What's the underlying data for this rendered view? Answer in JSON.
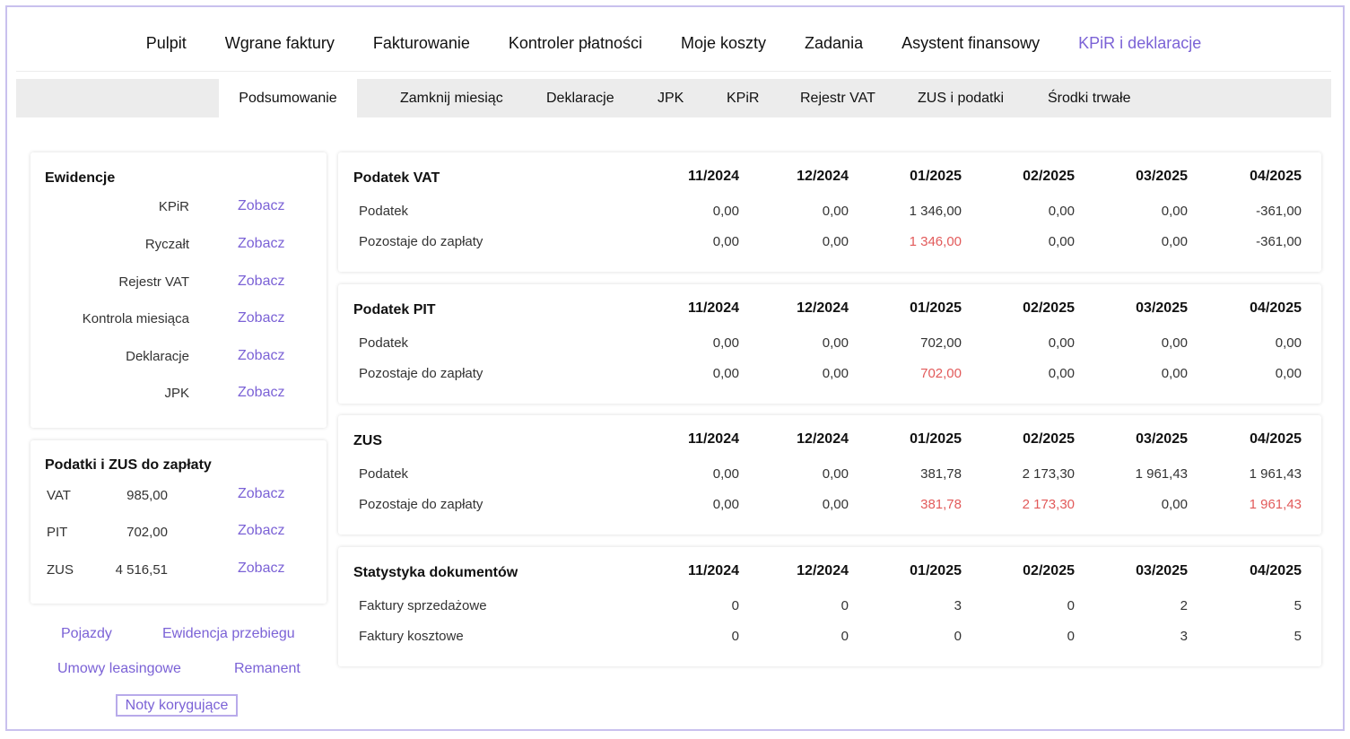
{
  "topnav": [
    "Pulpit",
    "Wgrane faktury",
    "Fakturowanie",
    "Kontroler płatności",
    "Moje koszty",
    "Zadania",
    "Asystent finansowy",
    "KPiR i deklaracje"
  ],
  "subnav": [
    "Podsumowanie",
    "Zamknij miesiąc",
    "Deklaracje",
    "JPK",
    "KPiR",
    "Rejestr VAT",
    "ZUS i podatki",
    "Środki trwałe"
  ],
  "ewidencje": {
    "title": "Ewidencje",
    "link_label": "Zobacz",
    "items": [
      "KPiR",
      "Ryczałt",
      "Rejestr VAT",
      "Kontrola miesiąca",
      "Deklaracje",
      "JPK"
    ]
  },
  "podatki": {
    "title": "Podatki i ZUS do zapłaty",
    "link_label": "Zobacz",
    "items": [
      {
        "label": "VAT",
        "value": "985,00"
      },
      {
        "label": "PIT",
        "value": "702,00"
      },
      {
        "label": "ZUS",
        "value": "4 516,51"
      }
    ]
  },
  "bottom_links": {
    "pojazdy": "Pojazdy",
    "ewidencja": "Ewidencja przebiegu",
    "umowy": "Umowy leasingowe",
    "remanent": "Remanent",
    "noty": "Noty korygujące"
  },
  "months": [
    "11/2024",
    "12/2024",
    "01/2025",
    "02/2025",
    "03/2025",
    "04/2025"
  ],
  "cards": [
    {
      "title": "Podatek VAT",
      "rows": [
        {
          "label": "Podatek",
          "values": [
            "0,00",
            "0,00",
            "1 346,00",
            "0,00",
            "0,00",
            "-361,00"
          ],
          "red": []
        },
        {
          "label": "Pozostaje do zapłaty",
          "values": [
            "0,00",
            "0,00",
            "1 346,00",
            "0,00",
            "0,00",
            "-361,00"
          ],
          "red": [
            2
          ]
        }
      ]
    },
    {
      "title": "Podatek PIT",
      "rows": [
        {
          "label": "Podatek",
          "values": [
            "0,00",
            "0,00",
            "702,00",
            "0,00",
            "0,00",
            "0,00"
          ],
          "red": []
        },
        {
          "label": "Pozostaje do zapłaty",
          "values": [
            "0,00",
            "0,00",
            "702,00",
            "0,00",
            "0,00",
            "0,00"
          ],
          "red": [
            2
          ]
        }
      ]
    },
    {
      "title": "ZUS",
      "rows": [
        {
          "label": "Podatek",
          "values": [
            "0,00",
            "0,00",
            "381,78",
            "2 173,30",
            "1 961,43",
            "1 961,43"
          ],
          "red": []
        },
        {
          "label": "Pozostaje do zapłaty",
          "values": [
            "0,00",
            "0,00",
            "381,78",
            "2 173,30",
            "0,00",
            "1 961,43"
          ],
          "red": [
            2,
            3,
            5
          ]
        }
      ]
    },
    {
      "title": "Statystyka dokumentów",
      "rows": [
        {
          "label": "Faktury sprzedażowe",
          "values": [
            "0",
            "0",
            "3",
            "0",
            "2",
            "5"
          ],
          "red": []
        },
        {
          "label": "Faktury kosztowe",
          "values": [
            "0",
            "0",
            "0",
            "0",
            "3",
            "5"
          ],
          "red": []
        }
      ]
    }
  ],
  "colors": {
    "accent": "#7b62d6",
    "red": "#e25a5a"
  }
}
